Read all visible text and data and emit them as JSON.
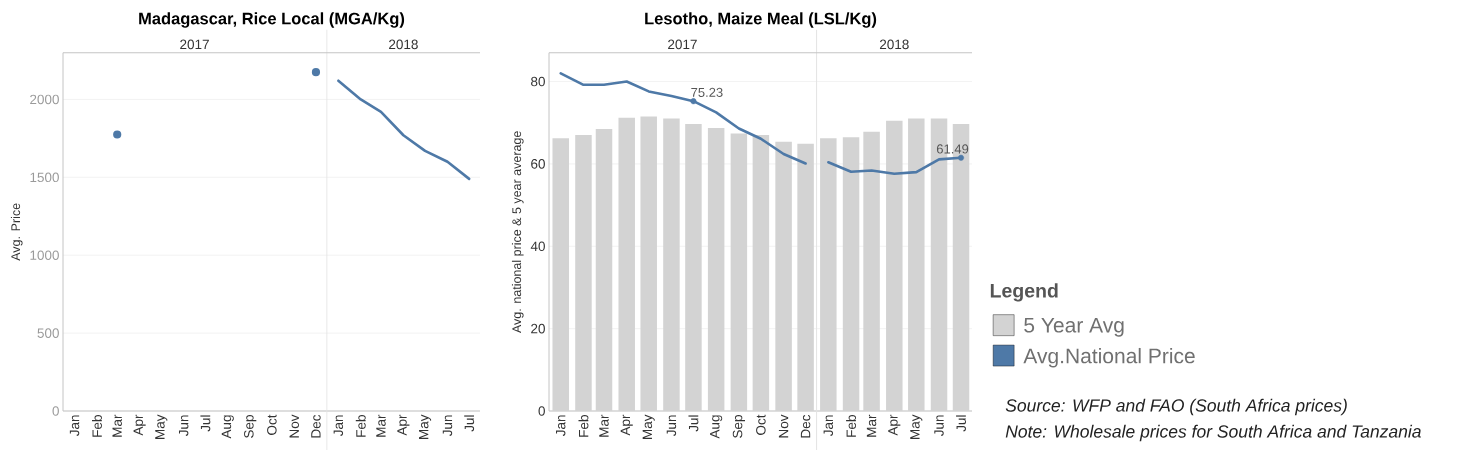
{
  "chart_data": [
    {
      "type": "line",
      "title": "Madagascar, Rice Local (MGA/Kg)",
      "ylabel": "Avg. Price",
      "xlim": [
        "2016-12-16",
        "2018-07-16"
      ],
      "xticks": [
        {
          "value": "2017-01",
          "label": "Jan"
        },
        {
          "value": "2017-02",
          "label": "Feb"
        },
        {
          "value": "2017-03",
          "label": "Mar"
        },
        {
          "value": "2017-04",
          "label": "Apr"
        },
        {
          "value": "2017-05",
          "label": "May"
        },
        {
          "value": "2017-06",
          "label": "Jun"
        },
        {
          "value": "2017-07",
          "label": "Jul"
        },
        {
          "value": "2017-08",
          "label": "Aug"
        },
        {
          "value": "2017-09",
          "label": "Sep"
        },
        {
          "value": "2017-10",
          "label": "Oct"
        },
        {
          "value": "2017-11",
          "label": "Nov"
        },
        {
          "value": "2017-12",
          "label": "Dec"
        },
        {
          "value": "2018-01",
          "label": "Jan"
        },
        {
          "value": "2018-02",
          "label": "Feb"
        },
        {
          "value": "2018-03",
          "label": "Mar"
        },
        {
          "value": "2018-04",
          "label": "Apr"
        },
        {
          "value": "2018-05",
          "label": "May"
        },
        {
          "value": "2018-06",
          "label": "Jun"
        },
        {
          "value": "2018-07",
          "label": "Jul"
        }
      ],
      "x2lim": [
        "2016-12-16",
        "2018-07-16"
      ],
      "x2ticks": [
        {
          "value": "2017-06-16",
          "label": "2017"
        },
        {
          "value": "2018-04-01",
          "label": "2018"
        }
      ],
      "ylim": [
        0,
        2300
      ],
      "yticks": [
        0,
        500,
        1000,
        1500,
        2000
      ],
      "grid": "y",
      "ref_lines": [
        {
          "axis": "x",
          "value": "2017-12-16",
          "color": "#e3e3e3"
        }
      ],
      "series": [
        {
          "color": "#4e79a7",
          "marker": "circle",
          "x": [
            "2017-03",
            "2017-04",
            "2017-05",
            "2017-06",
            "2017-07",
            "2017-08",
            "2017-09",
            "2017-10",
            "2017-11",
            "2017-12"
          ],
          "values": [
            1775,
            null,
            null,
            null,
            null,
            null,
            null,
            null,
            null,
            2175
          ]
        },
        {
          "color": "#4e79a7",
          "x": [
            "2018-01",
            "2018-02",
            "2018-03",
            "2018-04",
            "2018-05",
            "2018-06",
            "2018-07"
          ],
          "values": [
            2120,
            2000,
            1920,
            1770,
            1670,
            1600,
            1490
          ]
        }
      ]
    },
    {
      "type": "bar",
      "title": "Lesotho, Maize Meal (LSL/Kg)",
      "ylabel": "Avg. national price & 5 year average",
      "legend": "right",
      "legend_title": "Legend",
      "x": [
        "2017-01",
        "2017-02",
        "2017-03",
        "2017-04",
        "2017-05",
        "2017-06",
        "2017-07",
        "2017-08",
        "2017-09",
        "2017-10",
        "2017-11",
        "2017-12",
        "2018-01",
        "2018-02",
        "2018-03",
        "2018-04",
        "2018-05",
        "2018-06",
        "2018-07"
      ],
      "xlim": [
        "2016-12-16",
        "2018-07-16"
      ],
      "xticks": [
        {
          "value": "2017-01",
          "label": "Jan"
        },
        {
          "value": "2017-02",
          "label": "Feb"
        },
        {
          "value": "2017-03",
          "label": "Mar"
        },
        {
          "value": "2017-04",
          "label": "Apr"
        },
        {
          "value": "2017-05",
          "label": "May"
        },
        {
          "value": "2017-06",
          "label": "Jun"
        },
        {
          "value": "2017-07",
          "label": "Jul"
        },
        {
          "value": "2017-08",
          "label": "Aug"
        },
        {
          "value": "2017-09",
          "label": "Sep"
        },
        {
          "value": "2017-10",
          "label": "Oct"
        },
        {
          "value": "2017-11",
          "label": "Nov"
        },
        {
          "value": "2017-12",
          "label": "Dec"
        },
        {
          "value": "2018-01",
          "label": "Jan"
        },
        {
          "value": "2018-02",
          "label": "Feb"
        },
        {
          "value": "2018-03",
          "label": "Mar"
        },
        {
          "value": "2018-04",
          "label": "Apr"
        },
        {
          "value": "2018-05",
          "label": "May"
        },
        {
          "value": "2018-06",
          "label": "Jun"
        },
        {
          "value": "2018-07",
          "label": "Jul"
        }
      ],
      "x2lim": [
        "2016-12-16",
        "2018-07-16"
      ],
      "x2ticks": [
        {
          "value": "2017-06-16",
          "label": "2017"
        },
        {
          "value": "2018-04-01",
          "label": "2018"
        }
      ],
      "ylim": [
        0,
        87
      ],
      "yticks": [
        0,
        20,
        40,
        60,
        80
      ],
      "grid": "y",
      "ref_lines": [
        {
          "axis": "x",
          "value": "2017-12-16",
          "color": "#e3e3e3"
        }
      ],
      "series": [
        {
          "name": "5 Year Avg",
          "color": "#d3d3d3",
          "values": [
            66.2,
            67.0,
            68.5,
            71.2,
            71.5,
            71.0,
            69.7,
            68.7,
            67.4,
            67.0,
            65.4,
            64.9,
            66.2,
            66.5,
            67.8,
            70.5,
            71.0,
            71.0,
            69.7
          ]
        },
        {
          "name": "Avg.National Price",
          "type": "line",
          "color": "#4e79a7",
          "x": [
            "2017-01",
            "2017-02",
            "2017-03",
            "2017-04",
            "2017-05",
            "2017-06",
            "2017-07",
            "2017-08",
            "2017-09",
            "2017-10",
            "2017-11",
            "2017-12"
          ],
          "values": [
            82.0,
            79.2,
            79.2,
            80.0,
            77.6,
            76.5,
            75.23,
            72.5,
            68.6,
            66.1,
            62.4,
            60.1
          ],
          "value_labels": [
            null,
            null,
            null,
            null,
            null,
            null,
            "75.23",
            null,
            null,
            null,
            null,
            null
          ]
        },
        {
          "type": "line",
          "color": "#4e79a7",
          "x": [
            "2018-01",
            "2018-02",
            "2018-03",
            "2018-04",
            "2018-05",
            "2018-06",
            "2018-07"
          ],
          "values": [
            60.4,
            58.1,
            58.4,
            57.6,
            58.0,
            61.1,
            61.49
          ],
          "value_labels": [
            null,
            null,
            null,
            null,
            null,
            null,
            "61.49"
          ]
        }
      ],
      "annotations": [
        "Source: WFP and FAO (South Africa prices)",
        "Note: Wholesale prices for South Africa and Tanzania"
      ]
    }
  ]
}
